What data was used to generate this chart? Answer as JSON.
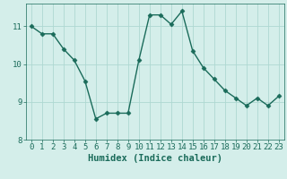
{
  "x": [
    0,
    1,
    2,
    3,
    4,
    5,
    6,
    7,
    8,
    9,
    10,
    11,
    12,
    13,
    14,
    15,
    16,
    17,
    18,
    19,
    20,
    21,
    22,
    23
  ],
  "y": [
    11.0,
    10.8,
    10.8,
    10.4,
    10.1,
    9.55,
    8.55,
    8.7,
    8.7,
    8.7,
    10.1,
    11.3,
    11.3,
    11.05,
    11.4,
    10.35,
    9.9,
    9.6,
    9.3,
    9.1,
    8.9,
    9.1,
    8.9,
    9.15
  ],
  "line_color": "#1a6b5a",
  "marker": "D",
  "marker_size": 2.5,
  "bg_color": "#d4eeea",
  "grid_color": "#aed8d2",
  "xlabel": "Humidex (Indice chaleur)",
  "xlim": [
    -0.5,
    23.5
  ],
  "ylim": [
    8.0,
    11.6
  ],
  "yticks": [
    8,
    9,
    10,
    11
  ],
  "xticks": [
    0,
    1,
    2,
    3,
    4,
    5,
    6,
    7,
    8,
    9,
    10,
    11,
    12,
    13,
    14,
    15,
    16,
    17,
    18,
    19,
    20,
    21,
    22,
    23
  ],
  "xtick_labels": [
    "0",
    "1",
    "2",
    "3",
    "4",
    "5",
    "6",
    "7",
    "8",
    "9",
    "10",
    "11",
    "12",
    "13",
    "14",
    "15",
    "16",
    "17",
    "18",
    "19",
    "20",
    "21",
    "22",
    "23"
  ],
  "xlabel_fontsize": 7.5,
  "tick_fontsize": 6.5,
  "linewidth": 1.0
}
